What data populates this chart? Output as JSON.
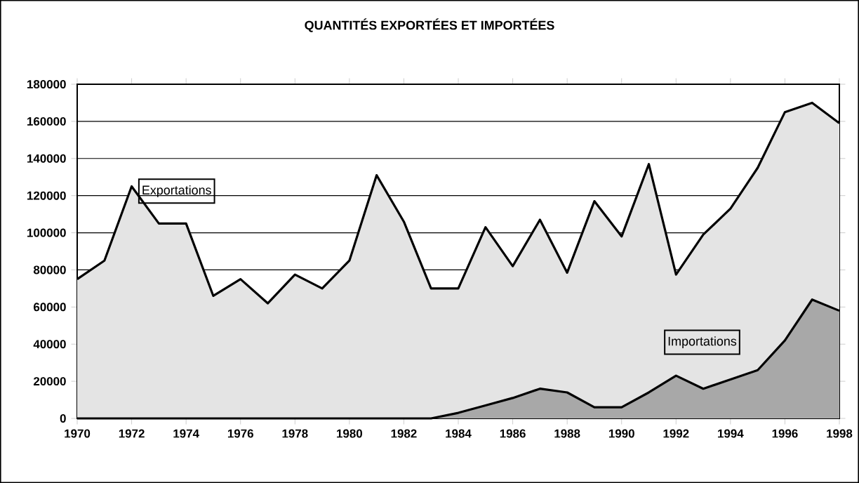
{
  "chart_data": {
    "type": "area",
    "title": "QUANTITÉS EXPORTÉES ET IMPORTÉES",
    "x": [
      1970,
      1971,
      1972,
      1973,
      1974,
      1975,
      1976,
      1977,
      1978,
      1979,
      1980,
      1981,
      1982,
      1983,
      1984,
      1985,
      1986,
      1987,
      1988,
      1989,
      1990,
      1991,
      1992,
      1993,
      1994,
      1995,
      1996,
      1997,
      1998
    ],
    "series": [
      {
        "name": "Exportations",
        "color": "#e4e4e4",
        "values": [
          75000,
          85000,
          125000,
          105000,
          105000,
          66000,
          75000,
          62000,
          77500,
          70000,
          85000,
          131000,
          106000,
          70000,
          70000,
          103000,
          82000,
          107000,
          78500,
          117000,
          98000,
          137000,
          77500,
          99000,
          113000,
          135000,
          165000,
          170000,
          159000
        ]
      },
      {
        "name": "Importations",
        "color": "#a8a8a8",
        "values": [
          0,
          0,
          0,
          0,
          0,
          0,
          0,
          0,
          0,
          0,
          0,
          0,
          0,
          0,
          3000,
          7000,
          11000,
          16000,
          14000,
          6000,
          6000,
          14000,
          23000,
          16000,
          21000,
          26000,
          42000,
          64000,
          58000
        ]
      }
    ],
    "xlim": [
      1970,
      1998
    ],
    "xticks": [
      1970,
      1972,
      1974,
      1976,
      1978,
      1980,
      1982,
      1984,
      1986,
      1988,
      1990,
      1992,
      1994,
      1996,
      1998
    ],
    "ylim": [
      0,
      180000
    ],
    "yticks": [
      0,
      20000,
      40000,
      60000,
      80000,
      100000,
      120000,
      140000,
      160000,
      180000
    ],
    "grid": "y",
    "legend": false
  }
}
